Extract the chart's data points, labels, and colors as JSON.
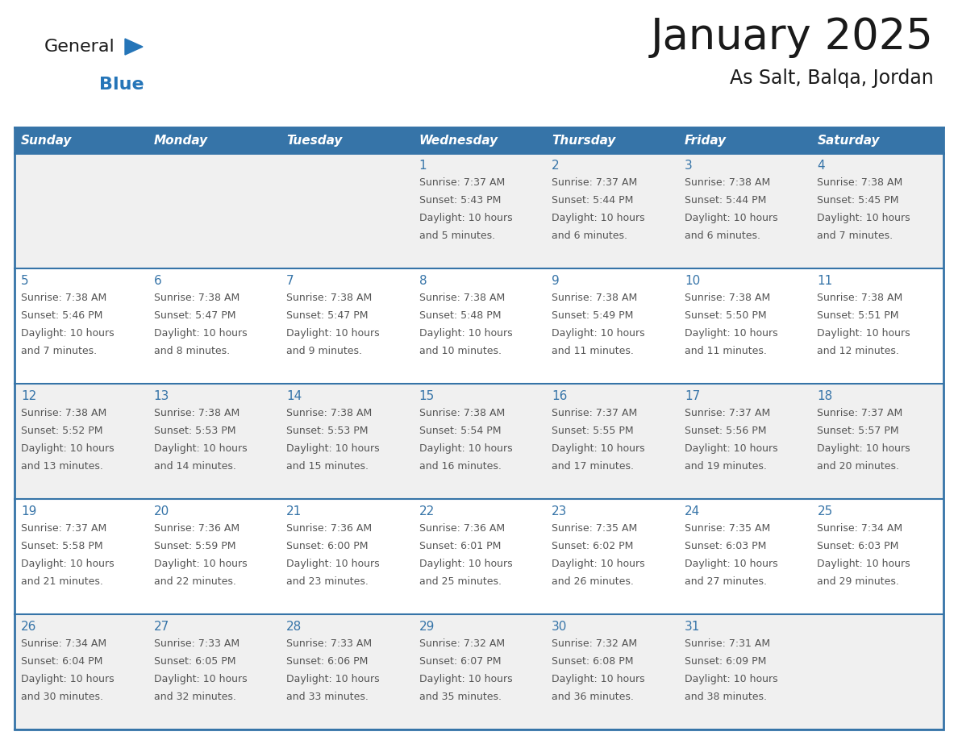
{
  "title": "January 2025",
  "subtitle": "As Salt, Balqa, Jordan",
  "days_of_week": [
    "Sunday",
    "Monday",
    "Tuesday",
    "Wednesday",
    "Thursday",
    "Friday",
    "Saturday"
  ],
  "header_bg_color": "#3674a8",
  "header_text_color": "#FFFFFF",
  "row0_bg": "#f0f0f0",
  "row1_bg": "#ffffff",
  "cell_border_color": "#3674a8",
  "day_number_color": "#3674a8",
  "cell_text_color": "#555555",
  "title_color": "#1a1a1a",
  "subtitle_color": "#1a1a1a",
  "logo_general_color": "#1a1a1a",
  "logo_blue_color": "#2575b8",
  "calendar_data": [
    {
      "day": 1,
      "col": 3,
      "row": 0,
      "sunrise": "7:37 AM",
      "sunset": "5:43 PM",
      "daylight_hours": 10,
      "daylight_minutes": 5
    },
    {
      "day": 2,
      "col": 4,
      "row": 0,
      "sunrise": "7:37 AM",
      "sunset": "5:44 PM",
      "daylight_hours": 10,
      "daylight_minutes": 6
    },
    {
      "day": 3,
      "col": 5,
      "row": 0,
      "sunrise": "7:38 AM",
      "sunset": "5:44 PM",
      "daylight_hours": 10,
      "daylight_minutes": 6
    },
    {
      "day": 4,
      "col": 6,
      "row": 0,
      "sunrise": "7:38 AM",
      "sunset": "5:45 PM",
      "daylight_hours": 10,
      "daylight_minutes": 7
    },
    {
      "day": 5,
      "col": 0,
      "row": 1,
      "sunrise": "7:38 AM",
      "sunset": "5:46 PM",
      "daylight_hours": 10,
      "daylight_minutes": 7
    },
    {
      "day": 6,
      "col": 1,
      "row": 1,
      "sunrise": "7:38 AM",
      "sunset": "5:47 PM",
      "daylight_hours": 10,
      "daylight_minutes": 8
    },
    {
      "day": 7,
      "col": 2,
      "row": 1,
      "sunrise": "7:38 AM",
      "sunset": "5:47 PM",
      "daylight_hours": 10,
      "daylight_minutes": 9
    },
    {
      "day": 8,
      "col": 3,
      "row": 1,
      "sunrise": "7:38 AM",
      "sunset": "5:48 PM",
      "daylight_hours": 10,
      "daylight_minutes": 10
    },
    {
      "day": 9,
      "col": 4,
      "row": 1,
      "sunrise": "7:38 AM",
      "sunset": "5:49 PM",
      "daylight_hours": 10,
      "daylight_minutes": 11
    },
    {
      "day": 10,
      "col": 5,
      "row": 1,
      "sunrise": "7:38 AM",
      "sunset": "5:50 PM",
      "daylight_hours": 10,
      "daylight_minutes": 11
    },
    {
      "day": 11,
      "col": 6,
      "row": 1,
      "sunrise": "7:38 AM",
      "sunset": "5:51 PM",
      "daylight_hours": 10,
      "daylight_minutes": 12
    },
    {
      "day": 12,
      "col": 0,
      "row": 2,
      "sunrise": "7:38 AM",
      "sunset": "5:52 PM",
      "daylight_hours": 10,
      "daylight_minutes": 13
    },
    {
      "day": 13,
      "col": 1,
      "row": 2,
      "sunrise": "7:38 AM",
      "sunset": "5:53 PM",
      "daylight_hours": 10,
      "daylight_minutes": 14
    },
    {
      "day": 14,
      "col": 2,
      "row": 2,
      "sunrise": "7:38 AM",
      "sunset": "5:53 PM",
      "daylight_hours": 10,
      "daylight_minutes": 15
    },
    {
      "day": 15,
      "col": 3,
      "row": 2,
      "sunrise": "7:38 AM",
      "sunset": "5:54 PM",
      "daylight_hours": 10,
      "daylight_minutes": 16
    },
    {
      "day": 16,
      "col": 4,
      "row": 2,
      "sunrise": "7:37 AM",
      "sunset": "5:55 PM",
      "daylight_hours": 10,
      "daylight_minutes": 17
    },
    {
      "day": 17,
      "col": 5,
      "row": 2,
      "sunrise": "7:37 AM",
      "sunset": "5:56 PM",
      "daylight_hours": 10,
      "daylight_minutes": 19
    },
    {
      "day": 18,
      "col": 6,
      "row": 2,
      "sunrise": "7:37 AM",
      "sunset": "5:57 PM",
      "daylight_hours": 10,
      "daylight_minutes": 20
    },
    {
      "day": 19,
      "col": 0,
      "row": 3,
      "sunrise": "7:37 AM",
      "sunset": "5:58 PM",
      "daylight_hours": 10,
      "daylight_minutes": 21
    },
    {
      "day": 20,
      "col": 1,
      "row": 3,
      "sunrise": "7:36 AM",
      "sunset": "5:59 PM",
      "daylight_hours": 10,
      "daylight_minutes": 22
    },
    {
      "day": 21,
      "col": 2,
      "row": 3,
      "sunrise": "7:36 AM",
      "sunset": "6:00 PM",
      "daylight_hours": 10,
      "daylight_minutes": 23
    },
    {
      "day": 22,
      "col": 3,
      "row": 3,
      "sunrise": "7:36 AM",
      "sunset": "6:01 PM",
      "daylight_hours": 10,
      "daylight_minutes": 25
    },
    {
      "day": 23,
      "col": 4,
      "row": 3,
      "sunrise": "7:35 AM",
      "sunset": "6:02 PM",
      "daylight_hours": 10,
      "daylight_minutes": 26
    },
    {
      "day": 24,
      "col": 5,
      "row": 3,
      "sunrise": "7:35 AM",
      "sunset": "6:03 PM",
      "daylight_hours": 10,
      "daylight_minutes": 27
    },
    {
      "day": 25,
      "col": 6,
      "row": 3,
      "sunrise": "7:34 AM",
      "sunset": "6:03 PM",
      "daylight_hours": 10,
      "daylight_minutes": 29
    },
    {
      "day": 26,
      "col": 0,
      "row": 4,
      "sunrise": "7:34 AM",
      "sunset": "6:04 PM",
      "daylight_hours": 10,
      "daylight_minutes": 30
    },
    {
      "day": 27,
      "col": 1,
      "row": 4,
      "sunrise": "7:33 AM",
      "sunset": "6:05 PM",
      "daylight_hours": 10,
      "daylight_minutes": 32
    },
    {
      "day": 28,
      "col": 2,
      "row": 4,
      "sunrise": "7:33 AM",
      "sunset": "6:06 PM",
      "daylight_hours": 10,
      "daylight_minutes": 33
    },
    {
      "day": 29,
      "col": 3,
      "row": 4,
      "sunrise": "7:32 AM",
      "sunset": "6:07 PM",
      "daylight_hours": 10,
      "daylight_minutes": 35
    },
    {
      "day": 30,
      "col": 4,
      "row": 4,
      "sunrise": "7:32 AM",
      "sunset": "6:08 PM",
      "daylight_hours": 10,
      "daylight_minutes": 36
    },
    {
      "day": 31,
      "col": 5,
      "row": 4,
      "sunrise": "7:31 AM",
      "sunset": "6:09 PM",
      "daylight_hours": 10,
      "daylight_minutes": 38
    }
  ]
}
